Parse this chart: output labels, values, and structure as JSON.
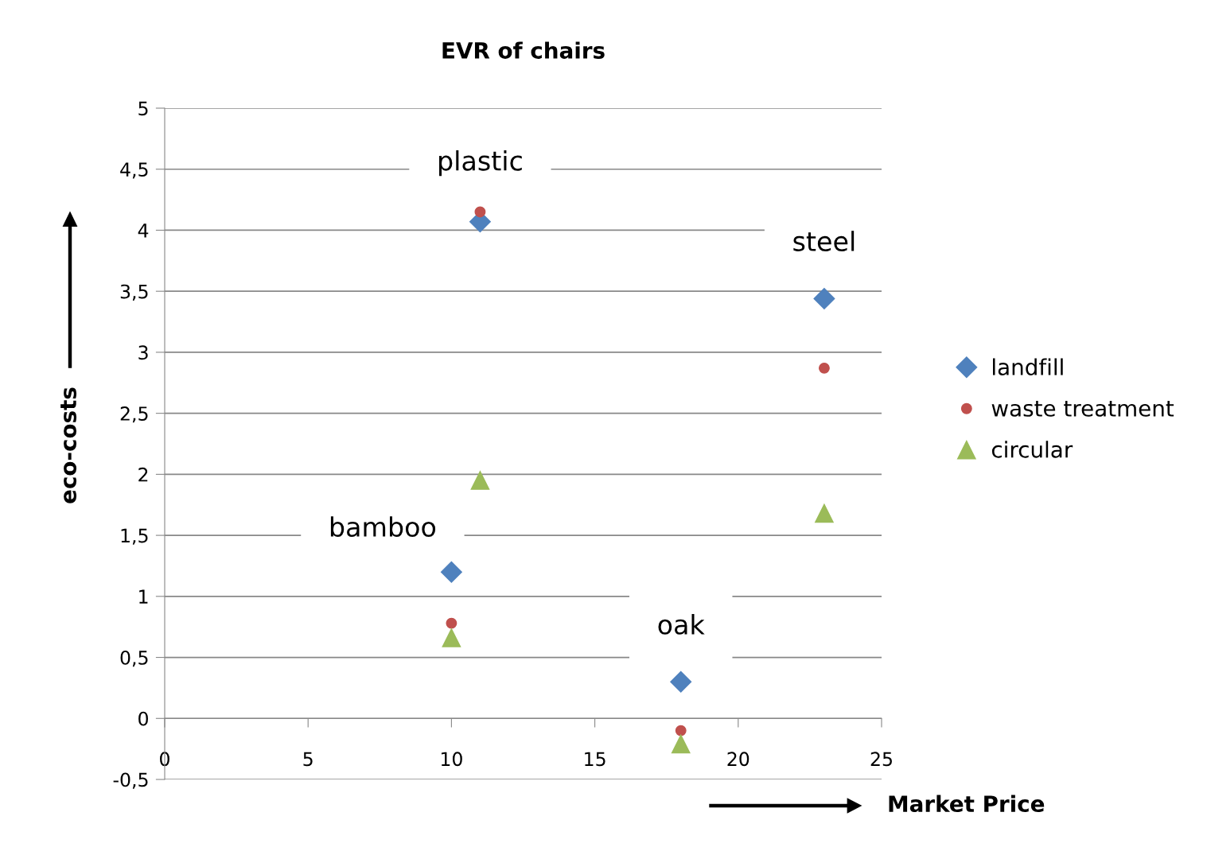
{
  "chart_data": {
    "type": "scatter",
    "title": "EVR of chairs",
    "xlabel": "Market Price",
    "ylabel": "eco-costs",
    "series": [
      {
        "name": "landfill",
        "color": "#4f81bd",
        "marker": "diamond",
        "x": [
          11,
          23,
          10,
          18
        ],
        "values": [
          4.07,
          3.44,
          1.2,
          0.3
        ]
      },
      {
        "name": "waste treatment",
        "color": "#c0504d",
        "marker": "circle",
        "x": [
          11,
          23,
          10,
          18
        ],
        "values": [
          4.15,
          2.87,
          0.78,
          -0.1
        ]
      },
      {
        "name": "circular",
        "color": "#9bbb59",
        "marker": "triangle",
        "x": [
          11,
          23,
          10,
          18
        ],
        "values": [
          1.95,
          1.68,
          0.66,
          -0.21
        ]
      }
    ],
    "annotations": [
      "plastic",
      "steel",
      "bamboo",
      "oak"
    ],
    "xlim": [
      0,
      25
    ],
    "xticks": [
      0,
      5,
      10,
      15,
      20,
      25
    ],
    "ylim": [
      -0.5,
      5
    ],
    "yticks": [
      {
        "value": -0.5,
        "label": "-0,5"
      },
      0,
      {
        "value": 0.5,
        "label": "0,5"
      },
      1,
      {
        "value": 1.5,
        "label": "1,5"
      },
      2,
      {
        "value": 2.5,
        "label": "2,5"
      },
      3,
      {
        "value": 3.5,
        "label": "3,5"
      },
      4,
      {
        "value": 4.5,
        "label": "4,5"
      },
      5
    ],
    "grid": "y",
    "legend": "right"
  }
}
